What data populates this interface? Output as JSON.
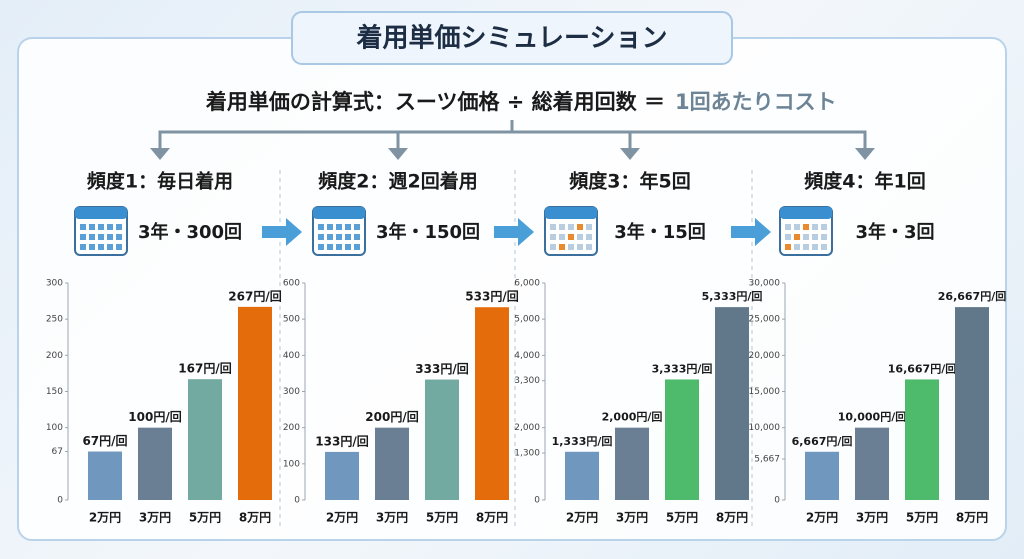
{
  "title": "着用単価シミュレーション",
  "formula": "着用単価の計算式：スーツ価格 ÷ 総着用回数 ＝",
  "formula_result": "1回あたりコスト",
  "chart_data": [
    {
      "type": "bar",
      "title": "頻度1：毎日着用",
      "subtitle": "3年・300回",
      "categories": [
        "2万円",
        "3万円",
        "5万円",
        "8万円"
      ],
      "values": [
        67,
        100,
        167,
        267
      ],
      "value_labels": [
        "67円/回",
        "100円/回",
        "167円/回",
        "267円/回"
      ],
      "colors": [
        "#7097bd",
        "#6b7f94",
        "#72a9a1",
        "#e46c0a"
      ],
      "ylim": [
        0,
        300
      ],
      "yticks": [
        0,
        67,
        100,
        150,
        200,
        250,
        300
      ]
    },
    {
      "type": "bar",
      "title": "頻度2：週2回着用",
      "subtitle": "3年・150回",
      "categories": [
        "2万円",
        "3万円",
        "5万円",
        "8万円"
      ],
      "values": [
        133,
        200,
        333,
        533
      ],
      "value_labels": [
        "133円/回",
        "200円/回",
        "333円/回",
        "533円/回"
      ],
      "colors": [
        "#7097bd",
        "#6b7f94",
        "#72a9a1",
        "#e46c0a"
      ],
      "ylim": [
        0,
        600
      ],
      "yticks": [
        0,
        100,
        200,
        300,
        400,
        500,
        600
      ]
    },
    {
      "type": "bar",
      "title": "頻度3：年5回",
      "subtitle": "3年・15回",
      "categories": [
        "2万円",
        "3万円",
        "5万円",
        "8万円"
      ],
      "values": [
        1333,
        2000,
        3333,
        5333
      ],
      "value_labels": [
        "1,333円/回",
        "2,000円/回",
        "3,333円/回",
        "5,333円/回"
      ],
      "colors": [
        "#7097bd",
        "#6b7f94",
        "#4dbb6b",
        "#60788a"
      ],
      "ylim": [
        0,
        6000
      ],
      "yticks": [
        0,
        {
          "value": 1300,
          "label": "1,300"
        },
        {
          "value": 2000,
          "label": "2,000"
        },
        {
          "value": 3300,
          "label": "3,300"
        },
        {
          "value": 4000,
          "label": "4,000"
        },
        {
          "value": 5000,
          "label": "5,000"
        },
        {
          "value": 6000,
          "label": "6,000"
        }
      ]
    },
    {
      "type": "bar",
      "title": "頻度4：年1回",
      "subtitle": "3年・3回",
      "categories": [
        "2万円",
        "3万円",
        "5万円",
        "8万円"
      ],
      "values": [
        6667,
        10000,
        16667,
        26667
      ],
      "value_labels": [
        "6,667円/回",
        "10,000円/回",
        "16,667円/回",
        "26,667円/回"
      ],
      "colors": [
        "#7097bd",
        "#6b7f94",
        "#4dbb6b",
        "#60788a"
      ],
      "ylim": [
        0,
        30000
      ],
      "yticks": [
        0,
        {
          "value": 5667,
          "label": "5,667"
        },
        {
          "value": 10000,
          "label": "10,000"
        },
        {
          "value": 15000,
          "label": "15,000"
        },
        {
          "value": 20000,
          "label": "20,000"
        },
        {
          "value": 25000,
          "label": "25,000"
        },
        {
          "value": 30000,
          "label": "30,000"
        }
      ]
    }
  ]
}
